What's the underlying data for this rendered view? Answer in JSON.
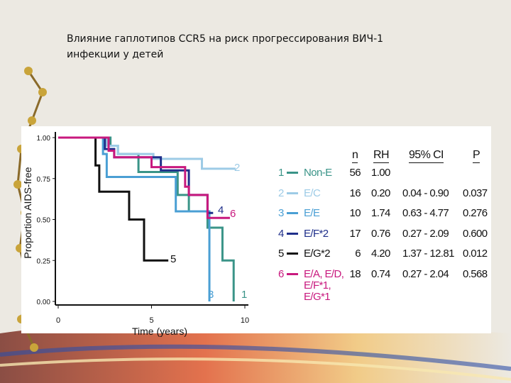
{
  "title": "Влияние гаплотипов CCR5 на риск прогрессирования ВИЧ-1 инфекции у детей",
  "chart_data": {
    "type": "step",
    "xlabel": "Time (years)",
    "ylabel": "Proportion AIDS-free",
    "xlim": [
      0,
      10
    ],
    "ylim": [
      0,
      1
    ],
    "xticks": [
      0,
      5,
      10
    ],
    "yticks": [
      {
        "value": 0,
        "label": "0.00"
      },
      {
        "value": 0.25,
        "label": "0.25"
      },
      {
        "value": 0.5,
        "label": "0.50"
      },
      {
        "value": 0.75,
        "label": "0.75"
      },
      {
        "value": 1,
        "label": "1.00"
      }
    ],
    "series": [
      {
        "name": "Non-E",
        "label": "1",
        "color": "#3a9488",
        "x": [
          0,
          2.8,
          3.2,
          4.3,
          6.4,
          7.0,
          8.0,
          8.8,
          9.4
        ],
        "values": [
          1,
          0.95,
          0.9,
          0.79,
          0.65,
          0.55,
          0.45,
          0.25,
          0
        ]
      },
      {
        "name": "E/C",
        "label": "2",
        "color": "#9dcbe6",
        "x": [
          0,
          2.6,
          3.2,
          5.1,
          7.7,
          9.5
        ],
        "values": [
          1,
          0.95,
          0.9,
          0.87,
          0.81,
          0.81
        ]
      },
      {
        "name": "E/E",
        "label": "3",
        "color": "#4a9fd4",
        "x": [
          0,
          2.4,
          2.6,
          6.3,
          8.1
        ],
        "values": [
          1,
          0.9,
          0.76,
          0.55,
          0
        ]
      },
      {
        "name": "E/F*2",
        "label": "4",
        "color": "#1f2f8a",
        "x": [
          0,
          2.5,
          3.0,
          5.5,
          7.0,
          8.0,
          8.3
        ],
        "values": [
          1,
          0.93,
          0.88,
          0.8,
          0.65,
          0.54,
          0.54
        ]
      },
      {
        "name": "E/G*2",
        "label": "5",
        "color": "#111111",
        "x": [
          0,
          2.0,
          2.2,
          3.8,
          4.6,
          5.9
        ],
        "values": [
          1,
          0.83,
          0.67,
          0.5,
          0.25,
          0.25
        ]
      },
      {
        "name": "E/A, E/D, E/F*1, E/G*1",
        "label": "6",
        "color": "#c8197e",
        "x": [
          0,
          2.7,
          3.0,
          5.0,
          6.8,
          7.0,
          8.0,
          9.2
        ],
        "values": [
          1,
          0.92,
          0.88,
          0.82,
          0.7,
          0.65,
          0.51,
          0.51
        ]
      }
    ],
    "table": {
      "header": [
        "n",
        "RH",
        "95% CI",
        "P"
      ],
      "rows": [
        [
          "56",
          "1.00",
          "",
          ""
        ],
        [
          "16",
          "0.20",
          "0.04 - 0.90",
          "0.037"
        ],
        [
          "10",
          "1.74",
          "0.63 - 4.77",
          "0.276"
        ],
        [
          "17",
          "0.76",
          "0.27 - 2.09",
          "0.600"
        ],
        [
          "6",
          "4.20",
          "1.37 - 12.81",
          "0.012"
        ],
        [
          "18",
          "0.74",
          "0.27 - 2.04",
          "0.568"
        ]
      ]
    }
  }
}
